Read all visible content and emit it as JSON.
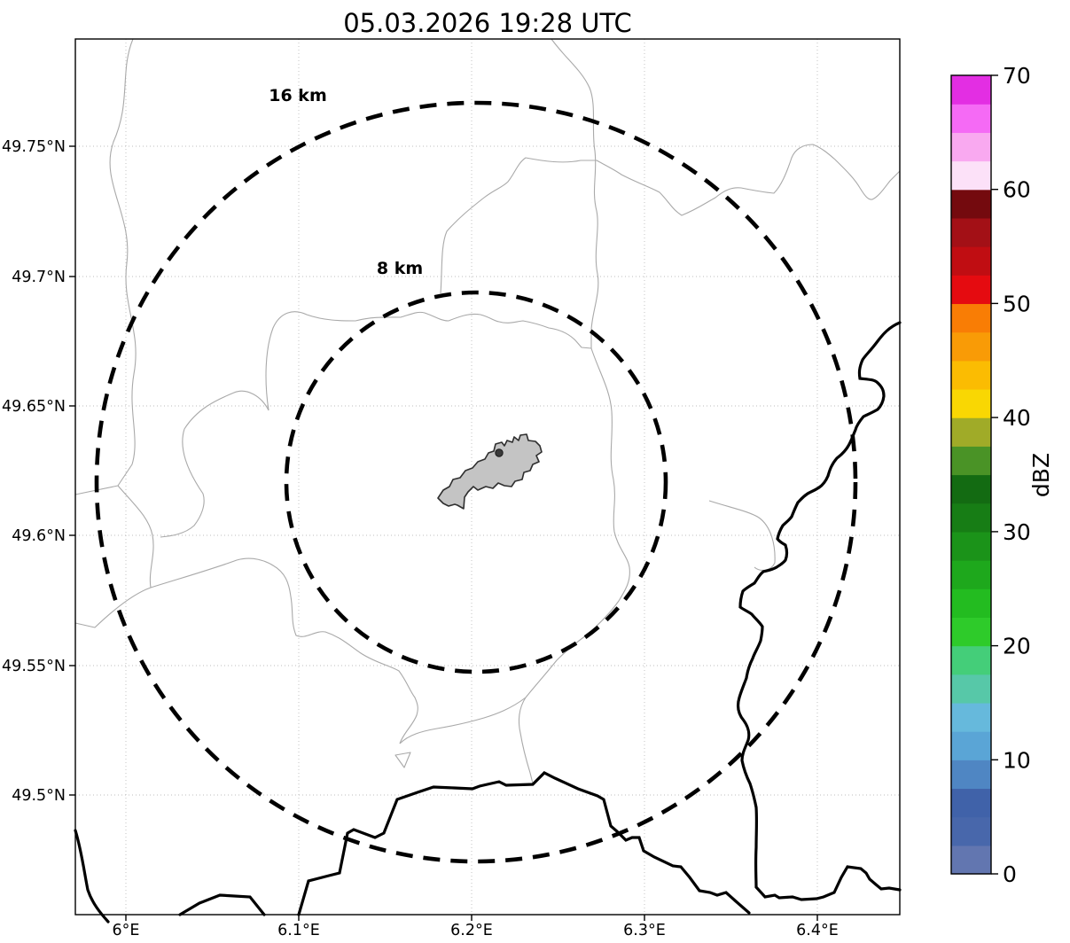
{
  "title": "05.03.2026 19:28 UTC",
  "map": {
    "x_tick_labels": [
      "6°E",
      "6.1°E",
      "6.2°E",
      "6.3°E",
      "6.4°E"
    ],
    "y_tick_labels": [
      "49.75°N",
      "49.7°N",
      "49.65°N",
      "49.6°N",
      "49.55°N",
      "49.5°N"
    ],
    "range_rings": {
      "outer_label": "16 km",
      "inner_label": "8 km"
    }
  },
  "colorbar": {
    "label": "dBZ",
    "tick_labels": [
      "70",
      "60",
      "50",
      "40",
      "30",
      "20",
      "10",
      "0"
    ],
    "segment_colors_bottom_to_top": [
      "#6276b0",
      "#4867ab",
      "#4062a9",
      "#4f86c3",
      "#5aa5d6",
      "#66b9dc",
      "#57c8a8",
      "#44ce79",
      "#2ecb2a",
      "#23bc20",
      "#1ea81c",
      "#1b9319",
      "#177d15",
      "#136b12",
      "#4a9326",
      "#a0ab28",
      "#f9d703",
      "#fbbc02",
      "#f99b06",
      "#f97d05",
      "#e50b10",
      "#c00d12",
      "#a31016",
      "#740a0e",
      "#fce1f8",
      "#f9a9f0",
      "#f56af5",
      "#e32ee3"
    ]
  },
  "colors": {
    "river_line": "#a9a9a9",
    "country_border": "#000000",
    "city_fill": "#c4c4c4",
    "range_ring": "#000000"
  }
}
